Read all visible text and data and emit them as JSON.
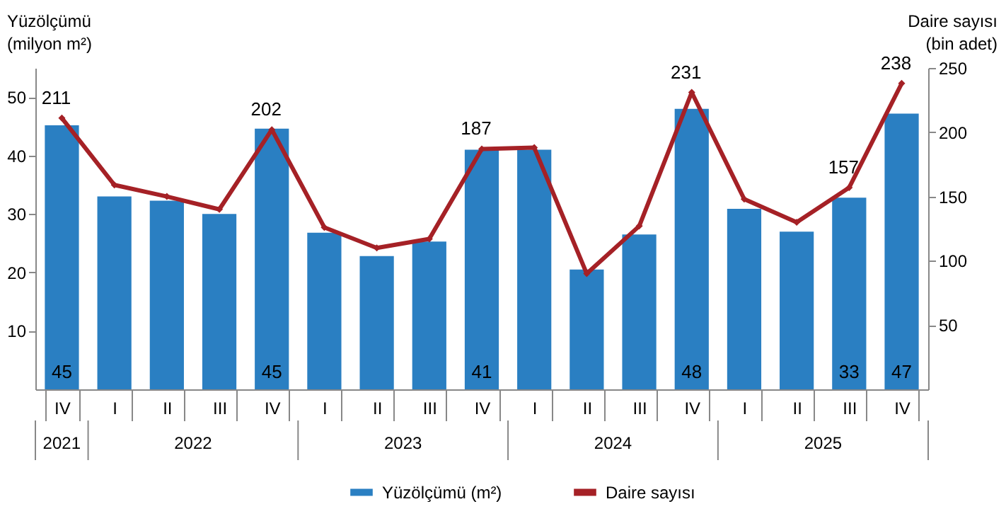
{
  "chart_data": {
    "type": "bar",
    "categories": [
      "IV",
      "I",
      "II",
      "III",
      "IV",
      "I",
      "II",
      "III",
      "IV",
      "I",
      "II",
      "III",
      "IV",
      "I",
      "II",
      "III",
      "IV"
    ],
    "ylabel": "Yüzölçümü\n(milyon m²)",
    "y2label": "Daire sayısı\n(bin adet)",
    "ylim": [
      0,
      55
    ],
    "yticks": [
      10,
      20,
      30,
      40,
      50
    ],
    "y2lim": [
      0,
      250
    ],
    "y2ticks": [
      50,
      100,
      150,
      200,
      250
    ],
    "series": [
      {
        "name": "Yüzölçümü (m²)",
        "color": "#2a7fc2",
        "values": [
          45.2,
          33,
          32.3,
          30,
          44.6,
          26.8,
          22.8,
          25.3,
          41,
          41,
          20.5,
          26.5,
          48,
          30.9,
          27,
          32.8,
          47.2
        ],
        "value_labels": [
          "45",
          null,
          null,
          null,
          "45",
          null,
          null,
          null,
          "41",
          null,
          null,
          null,
          "48",
          null,
          null,
          "33",
          "47"
        ]
      },
      {
        "name": "Daire sayısı",
        "type": "line",
        "axis": "y2",
        "color": "#a52126",
        "marker": "diamond",
        "values": [
          211,
          159,
          150,
          140,
          202,
          126,
          110,
          117,
          187,
          188,
          90,
          127,
          231,
          148,
          130,
          157,
          238
        ],
        "value_labels": [
          "211",
          null,
          null,
          null,
          "202",
          null,
          null,
          null,
          "187",
          null,
          null,
          null,
          "231",
          null,
          null,
          "157",
          "238"
        ]
      }
    ],
    "annotations": [
      "2021",
      "2022",
      "2023",
      "2024",
      "2025"
    ],
    "legend": "bottom",
    "grid": false
  }
}
